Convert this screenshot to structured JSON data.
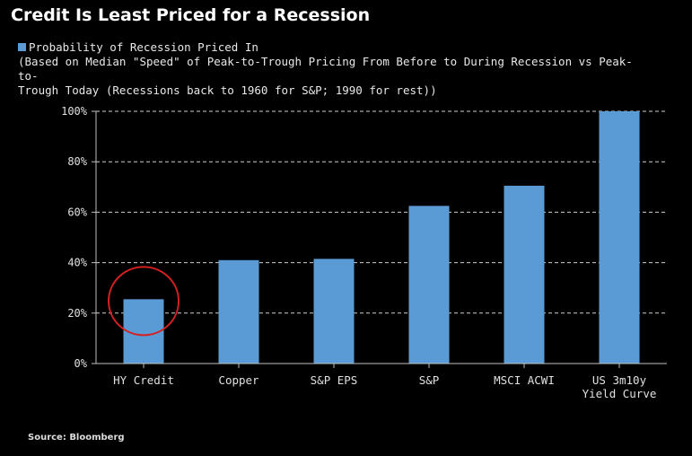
{
  "header": {
    "title": "Credit Is Least Priced for a Recession"
  },
  "legend": {
    "series_label": "Probability of Recession Priced In",
    "note_line1": "(Based on Median \"Speed\" of Peak-to-Trough Pricing From Before to During Recession vs Peak-to-",
    "note_line2": "Trough Today (Recessions back to 1960 for S&P; 1990 for rest))"
  },
  "footer": {
    "source": "Source: Bloomberg"
  },
  "chart_data": {
    "type": "bar",
    "title": "Credit Is Least Priced for a Recession",
    "categories": [
      "HY Credit",
      "Copper",
      "S&P EPS",
      "S&P",
      "MSCI ACWI",
      "US 3m10y\nYield Curve"
    ],
    "series": [
      {
        "name": "Probability of Recession Priced In",
        "values": [
          25.5,
          41,
          41.5,
          62.5,
          70.5,
          100
        ]
      }
    ],
    "ylim": [
      0,
      100
    ],
    "yticks": [
      0,
      20,
      40,
      60,
      80,
      100
    ],
    "ytick_labels": [
      "0%",
      "20%",
      "40%",
      "60%",
      "80%",
      "100%"
    ],
    "grid": true,
    "legend_position": "top-left",
    "bar_color": "#5b9bd5",
    "annotation": {
      "type": "circle",
      "category_index": 0,
      "color": "#d42020"
    }
  }
}
